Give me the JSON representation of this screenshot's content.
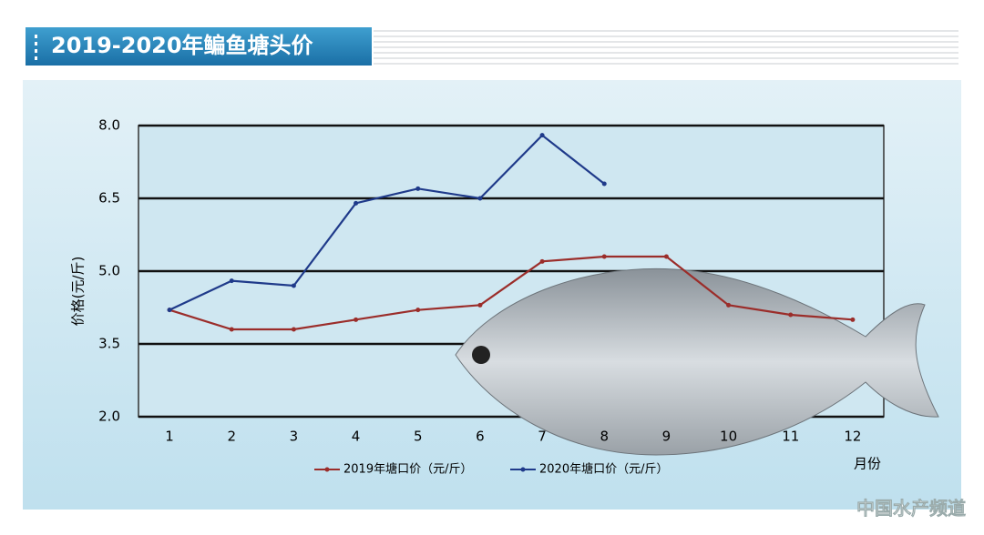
{
  "chart_data": {
    "type": "line",
    "title": "2019-2020年鳊鱼塘头价",
    "y_label": "价格(元/斤)",
    "x_label": "月份",
    "categories": [
      "1",
      "2",
      "3",
      "4",
      "5",
      "6",
      "7",
      "8",
      "9",
      "10",
      "11",
      "12"
    ],
    "series": [
      {
        "name": "2019年塘口价（元/斤）",
        "color": "#9b2d2a",
        "values": [
          4.2,
          3.8,
          3.8,
          4.0,
          4.2,
          4.3,
          5.2,
          5.3,
          5.3,
          4.3,
          4.1,
          4.0
        ]
      },
      {
        "name": "2020年塘口价（元/斤）",
        "color": "#1f3a8a",
        "values": [
          4.2,
          4.8,
          4.7,
          6.4,
          6.7,
          6.5,
          7.8,
          6.8,
          null,
          null,
          null,
          null
        ]
      }
    ],
    "ylim": [
      2,
      8
    ],
    "yticks": [
      {
        "value": 2,
        "label": "2.0"
      },
      {
        "value": 3.5,
        "label": "3.5"
      },
      {
        "value": 5,
        "label": "5.0"
      },
      {
        "value": 6.5,
        "label": "6.5"
      },
      {
        "value": 8,
        "label": "8.0"
      }
    ],
    "grid": true,
    "watermark": "中国水产频道"
  }
}
